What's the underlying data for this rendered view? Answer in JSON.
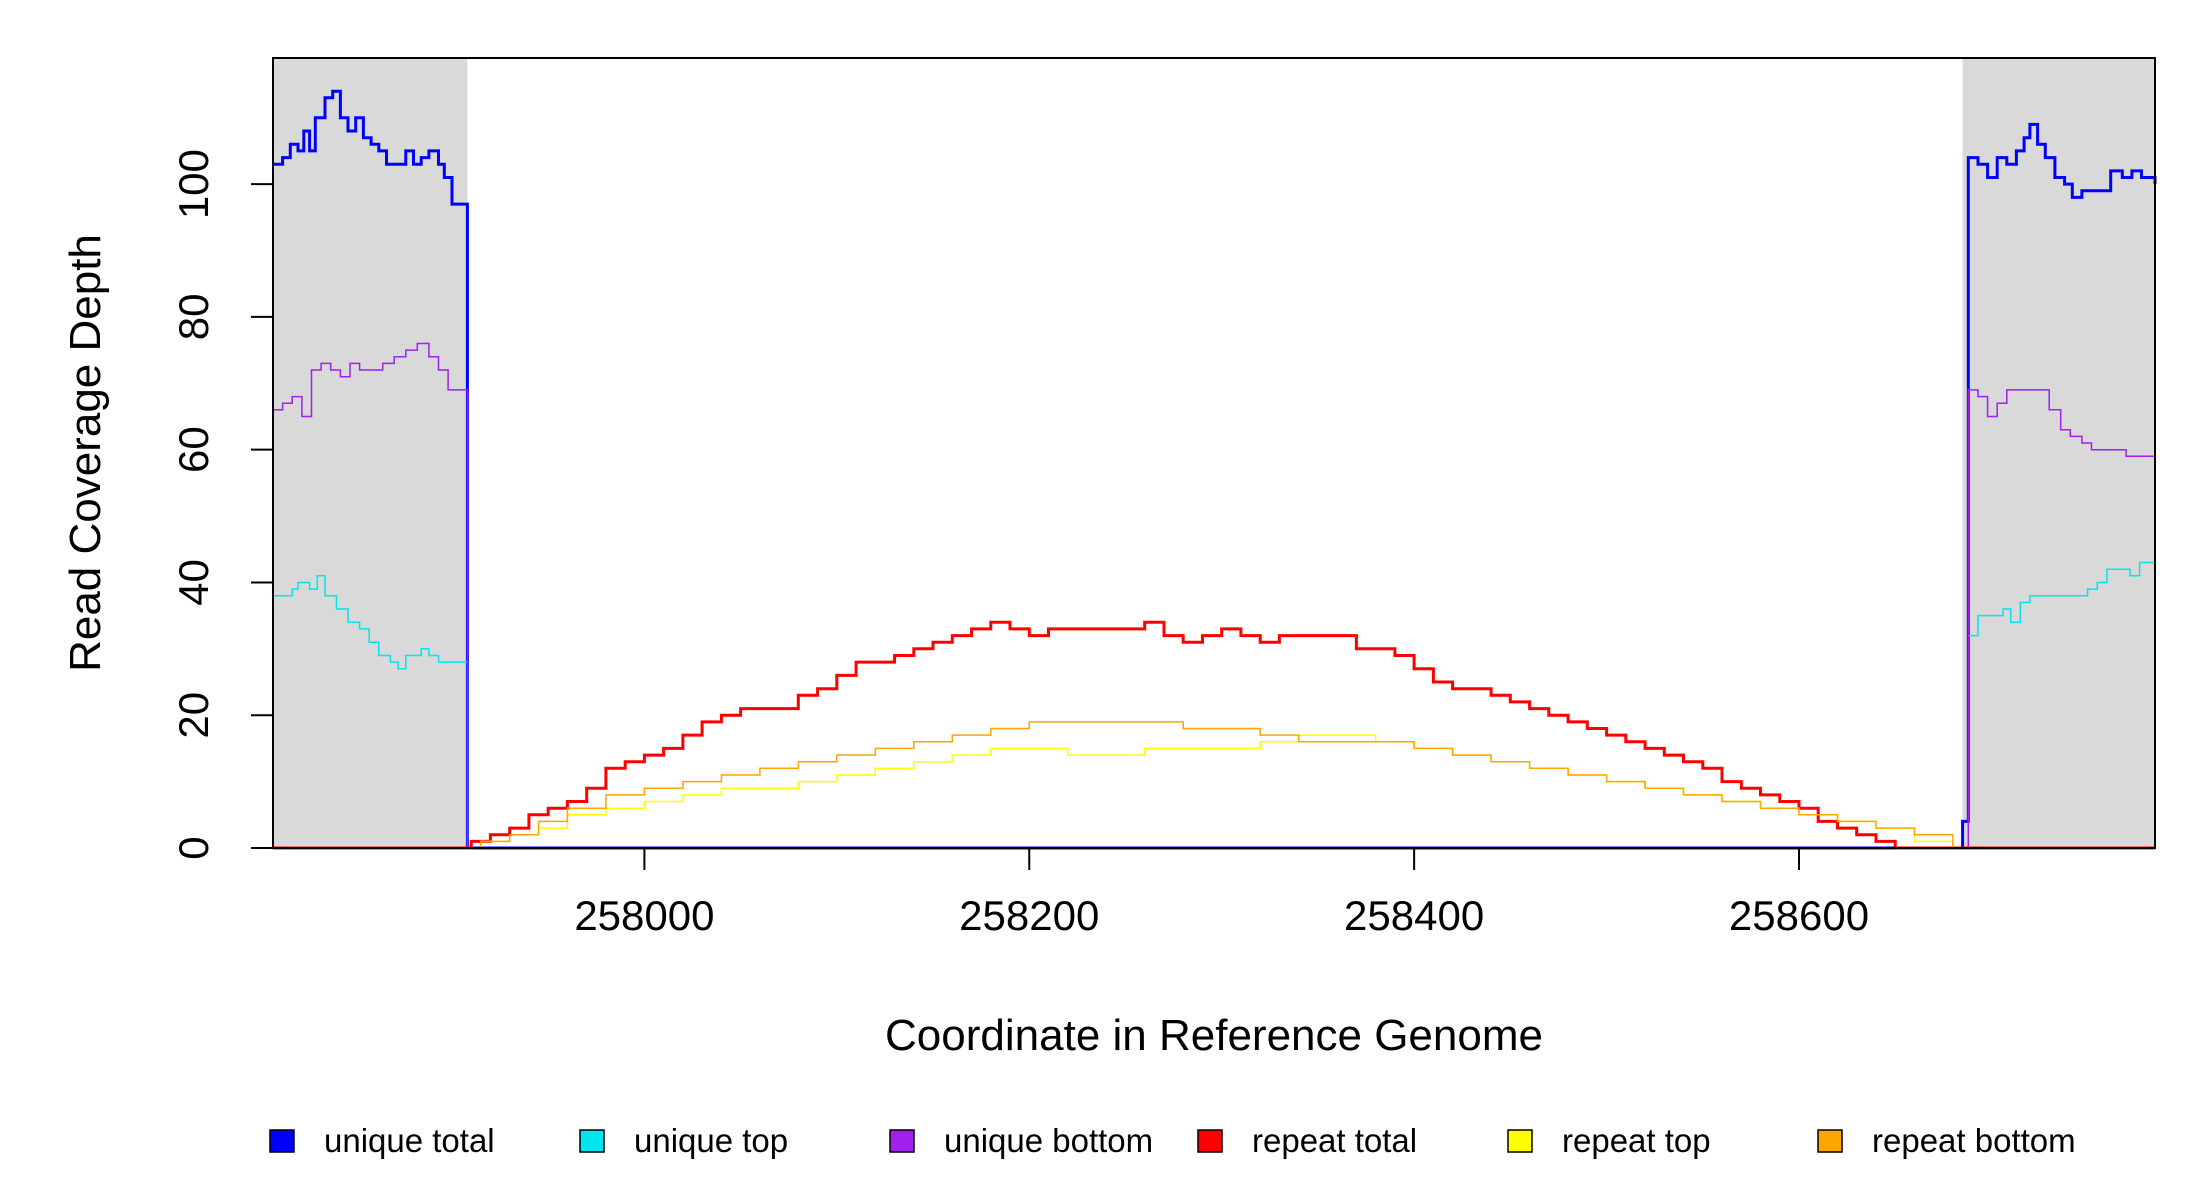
{
  "chart_data": {
    "type": "line",
    "title": "",
    "xlabel": "Coordinate in Reference Genome",
    "ylabel": "Read Coverage Depth",
    "xlim": [
      257807,
      258785
    ],
    "ylim": [
      0,
      119
    ],
    "x_ticks": [
      258000,
      258200,
      258400,
      258600
    ],
    "y_ticks": [
      0,
      20,
      40,
      60,
      80,
      100
    ],
    "grid": false,
    "legend_position": "bottom",
    "shaded_regions": [
      {
        "x_start": 257807,
        "x_end": 257908,
        "color": "#d9d9d9"
      },
      {
        "x_start": 258685,
        "x_end": 258785,
        "color": "#d9d9d9"
      }
    ],
    "series": [
      {
        "name": "unique total",
        "color": "#0000ff",
        "stroke_width": 3,
        "points": [
          [
            257807,
            103
          ],
          [
            257812,
            104
          ],
          [
            257816,
            106
          ],
          [
            257820,
            105
          ],
          [
            257823,
            108
          ],
          [
            257826,
            105
          ],
          [
            257829,
            110
          ],
          [
            257834,
            113
          ],
          [
            257838,
            114
          ],
          [
            257842,
            110
          ],
          [
            257846,
            108
          ],
          [
            257850,
            110
          ],
          [
            257854,
            107
          ],
          [
            257858,
            106
          ],
          [
            257862,
            105
          ],
          [
            257866,
            103
          ],
          [
            257872,
            103
          ],
          [
            257876,
            105
          ],
          [
            257880,
            103
          ],
          [
            257884,
            104
          ],
          [
            257888,
            105
          ],
          [
            257893,
            103
          ],
          [
            257896,
            101
          ],
          [
            257900,
            97
          ],
          [
            257906,
            97
          ],
          [
            257908,
            0
          ],
          [
            258683,
            0
          ],
          [
            258685,
            4
          ],
          [
            258688,
            104
          ],
          [
            258693,
            103
          ],
          [
            258698,
            101
          ],
          [
            258703,
            104
          ],
          [
            258708,
            103
          ],
          [
            258713,
            105
          ],
          [
            258717,
            107
          ],
          [
            258720,
            109
          ],
          [
            258724,
            106
          ],
          [
            258728,
            104
          ],
          [
            258733,
            101
          ],
          [
            258738,
            100
          ],
          [
            258742,
            98
          ],
          [
            258747,
            99
          ],
          [
            258752,
            99
          ],
          [
            258757,
            99
          ],
          [
            258762,
            102
          ],
          [
            258768,
            101
          ],
          [
            258773,
            102
          ],
          [
            258778,
            101
          ],
          [
            258785,
            100
          ]
        ]
      },
      {
        "name": "unique top",
        "color": "#00e5ee",
        "stroke_width": 1.5,
        "points": [
          [
            257807,
            38
          ],
          [
            257812,
            38
          ],
          [
            257817,
            39
          ],
          [
            257820,
            40
          ],
          [
            257826,
            39
          ],
          [
            257830,
            41
          ],
          [
            257834,
            38
          ],
          [
            257840,
            36
          ],
          [
            257846,
            34
          ],
          [
            257852,
            33
          ],
          [
            257857,
            31
          ],
          [
            257862,
            29
          ],
          [
            257868,
            28
          ],
          [
            257872,
            27
          ],
          [
            257876,
            29
          ],
          [
            257880,
            29
          ],
          [
            257884,
            30
          ],
          [
            257888,
            29
          ],
          [
            257893,
            28
          ],
          [
            257900,
            28
          ],
          [
            257908,
            0
          ],
          [
            258685,
            0
          ],
          [
            258688,
            32
          ],
          [
            258693,
            35
          ],
          [
            258700,
            35
          ],
          [
            258706,
            36
          ],
          [
            258710,
            34
          ],
          [
            258715,
            37
          ],
          [
            258720,
            38
          ],
          [
            258725,
            38
          ],
          [
            258730,
            38
          ],
          [
            258740,
            38
          ],
          [
            258745,
            38
          ],
          [
            258750,
            39
          ],
          [
            258755,
            40
          ],
          [
            258760,
            42
          ],
          [
            258767,
            42
          ],
          [
            258772,
            41
          ],
          [
            258777,
            43
          ],
          [
            258785,
            44
          ]
        ]
      },
      {
        "name": "unique bottom",
        "color": "#a020f0",
        "stroke_width": 1.5,
        "points": [
          [
            257807,
            66
          ],
          [
            257812,
            67
          ],
          [
            257817,
            68
          ],
          [
            257822,
            65
          ],
          [
            257827,
            72
          ],
          [
            257832,
            73
          ],
          [
            257837,
            72
          ],
          [
            257842,
            71
          ],
          [
            257847,
            73
          ],
          [
            257852,
            72
          ],
          [
            257858,
            72
          ],
          [
            257864,
            73
          ],
          [
            257870,
            74
          ],
          [
            257876,
            75
          ],
          [
            257882,
            76
          ],
          [
            257888,
            74
          ],
          [
            257893,
            72
          ],
          [
            257898,
            69
          ],
          [
            257908,
            0
          ],
          [
            258685,
            0
          ],
          [
            258688,
            69
          ],
          [
            258693,
            68
          ],
          [
            258698,
            65
          ],
          [
            258703,
            67
          ],
          [
            258708,
            69
          ],
          [
            258713,
            69
          ],
          [
            258718,
            69
          ],
          [
            258724,
            69
          ],
          [
            258730,
            66
          ],
          [
            258736,
            63
          ],
          [
            258741,
            62
          ],
          [
            258747,
            61
          ],
          [
            258752,
            60
          ],
          [
            258758,
            60
          ],
          [
            258764,
            60
          ],
          [
            258770,
            59
          ],
          [
            258776,
            59
          ],
          [
            258785,
            57
          ]
        ]
      },
      {
        "name": "repeat total",
        "color": "#ff0000",
        "stroke_width": 3,
        "points": [
          [
            257807,
            0
          ],
          [
            257908,
            0
          ],
          [
            257910,
            1
          ],
          [
            257920,
            2
          ],
          [
            257930,
            3
          ],
          [
            257940,
            5
          ],
          [
            257950,
            6
          ],
          [
            257960,
            7
          ],
          [
            257970,
            9
          ],
          [
            257980,
            12
          ],
          [
            257990,
            13
          ],
          [
            258000,
            14
          ],
          [
            258010,
            15
          ],
          [
            258020,
            17
          ],
          [
            258030,
            19
          ],
          [
            258040,
            20
          ],
          [
            258050,
            21
          ],
          [
            258060,
            21
          ],
          [
            258070,
            21
          ],
          [
            258080,
            23
          ],
          [
            258090,
            24
          ],
          [
            258100,
            26
          ],
          [
            258110,
            28
          ],
          [
            258120,
            28
          ],
          [
            258130,
            29
          ],
          [
            258140,
            30
          ],
          [
            258150,
            31
          ],
          [
            258160,
            32
          ],
          [
            258170,
            33
          ],
          [
            258180,
            34
          ],
          [
            258190,
            33
          ],
          [
            258200,
            32
          ],
          [
            258210,
            33
          ],
          [
            258220,
            33
          ],
          [
            258230,
            33
          ],
          [
            258240,
            33
          ],
          [
            258250,
            33
          ],
          [
            258260,
            34
          ],
          [
            258270,
            32
          ],
          [
            258280,
            31
          ],
          [
            258290,
            32
          ],
          [
            258300,
            33
          ],
          [
            258310,
            32
          ],
          [
            258320,
            31
          ],
          [
            258330,
            32
          ],
          [
            258340,
            32
          ],
          [
            258350,
            32
          ],
          [
            258360,
            32
          ],
          [
            258370,
            30
          ],
          [
            258380,
            30
          ],
          [
            258390,
            29
          ],
          [
            258400,
            27
          ],
          [
            258410,
            25
          ],
          [
            258420,
            24
          ],
          [
            258430,
            24
          ],
          [
            258440,
            23
          ],
          [
            258450,
            22
          ],
          [
            258460,
            21
          ],
          [
            258470,
            20
          ],
          [
            258480,
            19
          ],
          [
            258490,
            18
          ],
          [
            258500,
            17
          ],
          [
            258510,
            16
          ],
          [
            258520,
            15
          ],
          [
            258530,
            14
          ],
          [
            258540,
            13
          ],
          [
            258550,
            12
          ],
          [
            258560,
            10
          ],
          [
            258570,
            9
          ],
          [
            258580,
            8
          ],
          [
            258590,
            7
          ],
          [
            258600,
            6
          ],
          [
            258610,
            4
          ],
          [
            258620,
            3
          ],
          [
            258630,
            2
          ],
          [
            258640,
            1
          ],
          [
            258650,
            0
          ],
          [
            258785,
            0
          ]
        ]
      },
      {
        "name": "repeat top",
        "color": "#ffff00",
        "stroke_width": 1.5,
        "points": [
          [
            257807,
            0
          ],
          [
            257908,
            0
          ],
          [
            257915,
            1
          ],
          [
            257930,
            2
          ],
          [
            257945,
            3
          ],
          [
            257960,
            5
          ],
          [
            257980,
            6
          ],
          [
            258000,
            7
          ],
          [
            258020,
            8
          ],
          [
            258040,
            9
          ],
          [
            258060,
            9
          ],
          [
            258080,
            10
          ],
          [
            258100,
            11
          ],
          [
            258120,
            12
          ],
          [
            258140,
            13
          ],
          [
            258160,
            14
          ],
          [
            258180,
            15
          ],
          [
            258200,
            15
          ],
          [
            258220,
            14
          ],
          [
            258240,
            14
          ],
          [
            258260,
            15
          ],
          [
            258280,
            15
          ],
          [
            258300,
            15
          ],
          [
            258320,
            16
          ],
          [
            258340,
            17
          ],
          [
            258360,
            17
          ],
          [
            258380,
            16
          ],
          [
            258400,
            15
          ],
          [
            258420,
            14
          ],
          [
            258440,
            13
          ],
          [
            258460,
            12
          ],
          [
            258480,
            11
          ],
          [
            258500,
            10
          ],
          [
            258520,
            9
          ],
          [
            258540,
            8
          ],
          [
            258560,
            7
          ],
          [
            258580,
            6
          ],
          [
            258600,
            5
          ],
          [
            258620,
            4
          ],
          [
            258640,
            3
          ],
          [
            258660,
            1
          ],
          [
            258680,
            0
          ],
          [
            258785,
            0
          ]
        ]
      },
      {
        "name": "repeat bottom",
        "color": "#ffa500",
        "stroke_width": 1.5,
        "points": [
          [
            257807,
            0
          ],
          [
            257908,
            0
          ],
          [
            257915,
            1
          ],
          [
            257930,
            2
          ],
          [
            257945,
            4
          ],
          [
            257960,
            6
          ],
          [
            257980,
            8
          ],
          [
            258000,
            9
          ],
          [
            258020,
            10
          ],
          [
            258040,
            11
          ],
          [
            258060,
            12
          ],
          [
            258080,
            13
          ],
          [
            258100,
            14
          ],
          [
            258120,
            15
          ],
          [
            258140,
            16
          ],
          [
            258160,
            17
          ],
          [
            258180,
            18
          ],
          [
            258200,
            19
          ],
          [
            258220,
            19
          ],
          [
            258240,
            19
          ],
          [
            258260,
            19
          ],
          [
            258280,
            18
          ],
          [
            258300,
            18
          ],
          [
            258320,
            17
          ],
          [
            258340,
            16
          ],
          [
            258360,
            16
          ],
          [
            258380,
            16
          ],
          [
            258400,
            15
          ],
          [
            258420,
            14
          ],
          [
            258440,
            13
          ],
          [
            258460,
            12
          ],
          [
            258480,
            11
          ],
          [
            258500,
            10
          ],
          [
            258520,
            9
          ],
          [
            258540,
            8
          ],
          [
            258560,
            7
          ],
          [
            258580,
            6
          ],
          [
            258600,
            5
          ],
          [
            258620,
            4
          ],
          [
            258640,
            3
          ],
          [
            258660,
            2
          ],
          [
            258680,
            0
          ],
          [
            258785,
            0
          ]
        ]
      }
    ]
  }
}
